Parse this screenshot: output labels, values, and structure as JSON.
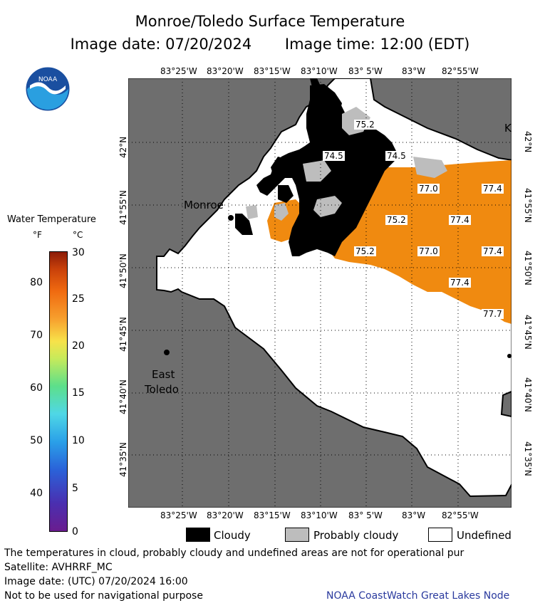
{
  "title_line1": "Monroe/Toledo Surface Temperature",
  "image_date": "Image date: 07/20/2024",
  "image_time": "Image time: 12:00 (EDT)",
  "logo_text": "NOAA",
  "legend": {
    "title": "Water Temperature",
    "unit_f": "°F",
    "unit_c": "°C",
    "f_ticks": [
      "80",
      "70",
      "60",
      "50",
      "40"
    ],
    "c_ticks": [
      "30",
      "25",
      "20",
      "15",
      "10",
      "5",
      "0"
    ]
  },
  "longitudes": [
    "83°25'W",
    "83°20'W",
    "83°15'W",
    "83°10'W",
    "83° 5'W",
    "83°W",
    "82°55'W"
  ],
  "latitudes": [
    "42°N",
    "41°55'N",
    "41°50'N",
    "41°45'N",
    "41°40'N",
    "41°35'N"
  ],
  "places": {
    "monroe": "Monroe",
    "east": "East",
    "toledo": "Toledo",
    "k": "K"
  },
  "temperatures": [
    "75.2",
    "74.5",
    "74.5",
    "77.0",
    "77.4",
    "75.2",
    "77.4",
    "75.2",
    "77.0",
    "77.4",
    "77.4",
    "77.7"
  ],
  "cloud_legend": {
    "cloudy": "Cloudy",
    "probably_cloudy": "Probably cloudy",
    "undefined": "Undefined"
  },
  "footer": {
    "line1": "The temperatures in cloud, probably cloudy and undefined areas are not for operational pur",
    "line2": "Satellite: AVHRRF_MC",
    "line3": "Image date: (UTC) 07/20/2024  16:00",
    "line4": "Not to be used for navigational purpose",
    "credit": "NOAA CoastWatch Great Lakes Node"
  },
  "colors": {
    "land": "#6e6e6e",
    "cloud": "#000000",
    "prob_cloud": "#bdbdbd",
    "water": "#f08a10",
    "undefined": "#ffffff"
  }
}
